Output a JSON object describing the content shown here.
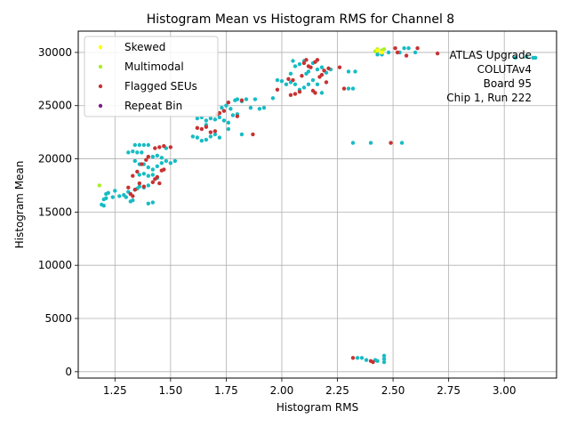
{
  "chart_data": {
    "type": "scatter",
    "title": "Histogram Mean vs Histogram RMS for Channel 8",
    "xlabel": "Histogram RMS",
    "ylabel": "Histogram Mean",
    "xlim": [
      1.085,
      3.235
    ],
    "ylim": [
      -600,
      32000
    ],
    "xticks": [
      1.25,
      1.5,
      1.75,
      2.0,
      2.25,
      2.5,
      2.75,
      3.0
    ],
    "xtick_labels": [
      "1.25",
      "1.50",
      "1.75",
      "2.00",
      "2.25",
      "2.50",
      "2.75",
      "3.00"
    ],
    "yticks": [
      0,
      5000,
      10000,
      15000,
      20000,
      25000,
      30000
    ],
    "ytick_labels": [
      "0",
      "5000",
      "10000",
      "15000",
      "20000",
      "25000",
      "30000"
    ],
    "grid": true,
    "legend_position": "top-left",
    "annotation": [
      "ATLAS Upgrade",
      "COLUTAv4",
      "Board 95",
      "Chip 1, Run 222"
    ],
    "series": [
      {
        "name": "Skewed",
        "color": "#ffff00",
        "points": [
          [
            2.43,
            30200
          ],
          [
            2.45,
            30000
          ]
        ]
      },
      {
        "name": "Multimodal",
        "color": "#aaee22",
        "points": [
          [
            1.18,
            17500
          ],
          [
            2.43,
            30300
          ],
          [
            2.45,
            30200
          ],
          [
            2.46,
            30300
          ],
          [
            2.42,
            30100
          ]
        ]
      },
      {
        "name": "Flagged SEUs",
        "color": "#c83232",
        "points": [
          [
            1.32,
            16700
          ],
          [
            1.33,
            16500
          ],
          [
            1.31,
            17300
          ],
          [
            1.34,
            17100
          ],
          [
            1.36,
            17700
          ],
          [
            1.38,
            17400
          ],
          [
            1.33,
            18400
          ],
          [
            1.35,
            18800
          ],
          [
            1.37,
            19500
          ],
          [
            1.39,
            19900
          ],
          [
            1.4,
            20200
          ],
          [
            1.42,
            17800
          ],
          [
            1.43,
            18100
          ],
          [
            1.44,
            18300
          ],
          [
            1.45,
            17700
          ],
          [
            1.46,
            18900
          ],
          [
            1.47,
            19000
          ],
          [
            1.43,
            21000
          ],
          [
            1.45,
            21100
          ],
          [
            1.47,
            21200
          ],
          [
            1.5,
            21100
          ],
          [
            1.62,
            22900
          ],
          [
            1.64,
            22800
          ],
          [
            1.66,
            23000
          ],
          [
            1.68,
            22500
          ],
          [
            1.7,
            22600
          ],
          [
            1.72,
            24300
          ],
          [
            1.74,
            24500
          ],
          [
            1.71,
            24200
          ],
          [
            1.76,
            25300
          ],
          [
            1.8,
            24000
          ],
          [
            1.82,
            25500
          ],
          [
            1.87,
            22300
          ],
          [
            1.98,
            26500
          ],
          [
            2.03,
            27500
          ],
          [
            2.05,
            27400
          ],
          [
            2.04,
            26000
          ],
          [
            2.06,
            26100
          ],
          [
            2.08,
            26300
          ],
          [
            2.09,
            27800
          ],
          [
            2.1,
            29000
          ],
          [
            2.11,
            29300
          ],
          [
            2.12,
            28700
          ],
          [
            2.13,
            28600
          ],
          [
            2.14,
            26400
          ],
          [
            2.15,
            26200
          ],
          [
            2.16,
            29300
          ],
          [
            2.15,
            29100
          ],
          [
            2.17,
            27700
          ],
          [
            2.18,
            27900
          ],
          [
            2.19,
            28300
          ],
          [
            2.2,
            27200
          ],
          [
            2.21,
            28500
          ],
          [
            2.26,
            28600
          ],
          [
            2.28,
            26600
          ],
          [
            2.32,
            1300
          ],
          [
            2.4,
            1000
          ],
          [
            2.41,
            900
          ],
          [
            2.49,
            21500
          ],
          [
            2.51,
            30400
          ],
          [
            2.52,
            30000
          ],
          [
            2.56,
            29700
          ],
          [
            2.61,
            30400
          ],
          [
            2.7,
            29900
          ]
        ]
      },
      {
        "name": "Repeat Bin",
        "color": "#7a1f8c",
        "points": []
      },
      {
        "name": "",
        "color": "#17bcc4",
        "points": [
          [
            1.19,
            15700
          ],
          [
            1.2,
            15600
          ],
          [
            1.21,
            16300
          ],
          [
            1.2,
            16200
          ],
          [
            1.22,
            16800
          ],
          [
            1.21,
            16700
          ],
          [
            1.24,
            16400
          ],
          [
            1.25,
            17000
          ],
          [
            1.27,
            16500
          ],
          [
            1.29,
            16600
          ],
          [
            1.3,
            16400
          ],
          [
            1.31,
            16900
          ],
          [
            1.32,
            16000
          ],
          [
            1.33,
            16100
          ],
          [
            1.34,
            17100
          ],
          [
            1.35,
            17200
          ],
          [
            1.36,
            17400
          ],
          [
            1.31,
            20600
          ],
          [
            1.33,
            20700
          ],
          [
            1.35,
            20600
          ],
          [
            1.37,
            20600
          ],
          [
            1.36,
            21300
          ],
          [
            1.38,
            21300
          ],
          [
            1.4,
            21300
          ],
          [
            1.34,
            21300
          ],
          [
            1.34,
            19800
          ],
          [
            1.36,
            19500
          ],
          [
            1.38,
            19500
          ],
          [
            1.4,
            19200
          ],
          [
            1.42,
            19000
          ],
          [
            1.44,
            19300
          ],
          [
            1.46,
            19600
          ],
          [
            1.48,
            19800
          ],
          [
            1.5,
            19600
          ],
          [
            1.52,
            19800
          ],
          [
            1.36,
            18500
          ],
          [
            1.38,
            18600
          ],
          [
            1.4,
            18400
          ],
          [
            1.42,
            18500
          ],
          [
            1.44,
            18200
          ],
          [
            1.4,
            15800
          ],
          [
            1.42,
            15900
          ],
          [
            1.38,
            17300
          ],
          [
            1.4,
            17500
          ],
          [
            1.42,
            20200
          ],
          [
            1.44,
            20300
          ],
          [
            1.46,
            20100
          ],
          [
            1.48,
            21000
          ],
          [
            1.6,
            22100
          ],
          [
            1.62,
            22000
          ],
          [
            1.64,
            21700
          ],
          [
            1.66,
            21800
          ],
          [
            1.68,
            22100
          ],
          [
            1.7,
            22300
          ],
          [
            1.72,
            22000
          ],
          [
            1.62,
            23800
          ],
          [
            1.64,
            23900
          ],
          [
            1.66,
            23600
          ],
          [
            1.68,
            23800
          ],
          [
            1.7,
            23700
          ],
          [
            1.72,
            23900
          ],
          [
            1.74,
            23600
          ],
          [
            1.76,
            23400
          ],
          [
            1.73,
            24800
          ],
          [
            1.75,
            25000
          ],
          [
            1.77,
            24700
          ],
          [
            1.79,
            25500
          ],
          [
            1.8,
            25600
          ],
          [
            1.82,
            25400
          ],
          [
            1.84,
            25600
          ],
          [
            1.86,
            24800
          ],
          [
            1.88,
            25600
          ],
          [
            1.9,
            24700
          ],
          [
            1.78,
            24100
          ],
          [
            1.8,
            24200
          ],
          [
            1.82,
            22300
          ],
          [
            1.76,
            22800
          ],
          [
            1.66,
            23200
          ],
          [
            1.96,
            25700
          ],
          [
            1.98,
            27400
          ],
          [
            2.0,
            27300
          ],
          [
            2.02,
            27000
          ],
          [
            2.04,
            27200
          ],
          [
            2.06,
            27000
          ],
          [
            2.08,
            26500
          ],
          [
            2.1,
            26700
          ],
          [
            2.12,
            27000
          ],
          [
            2.14,
            27400
          ],
          [
            2.16,
            27000
          ],
          [
            2.18,
            26200
          ],
          [
            2.04,
            28000
          ],
          [
            2.06,
            28700
          ],
          [
            2.08,
            28900
          ],
          [
            2.1,
            29200
          ],
          [
            2.12,
            28200
          ],
          [
            2.14,
            29000
          ],
          [
            2.16,
            28400
          ],
          [
            2.18,
            28600
          ],
          [
            2.2,
            28100
          ],
          [
            2.22,
            28400
          ],
          [
            2.05,
            29200
          ],
          [
            2.11,
            28000
          ],
          [
            2.3,
            28200
          ],
          [
            2.33,
            28200
          ],
          [
            2.3,
            26600
          ],
          [
            2.32,
            26600
          ],
          [
            2.32,
            21500
          ],
          [
            2.4,
            21500
          ],
          [
            2.54,
            21500
          ],
          [
            2.43,
            29800
          ],
          [
            2.45,
            29800
          ],
          [
            2.48,
            30000
          ],
          [
            2.53,
            30000
          ],
          [
            2.55,
            30400
          ],
          [
            2.57,
            30400
          ],
          [
            2.6,
            30000
          ],
          [
            2.34,
            1300
          ],
          [
            2.36,
            1300
          ],
          [
            2.38,
            1100
          ],
          [
            2.43,
            1000
          ],
          [
            2.46,
            900
          ],
          [
            2.46,
            1200
          ],
          [
            2.46,
            1500
          ],
          [
            2.42,
            1100
          ],
          [
            3.05,
            29500
          ],
          [
            3.1,
            29600
          ],
          [
            3.13,
            29500
          ],
          [
            3.14,
            29500
          ],
          [
            1.92,
            24800
          ]
        ]
      }
    ]
  }
}
